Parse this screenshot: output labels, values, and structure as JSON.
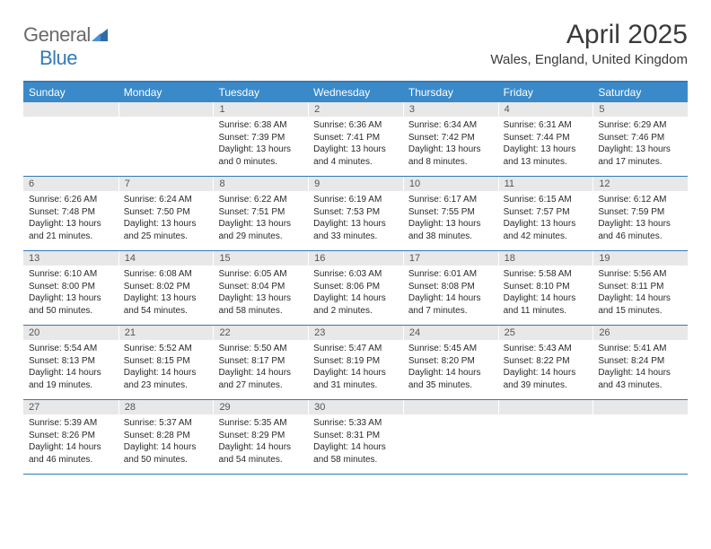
{
  "logo": {
    "text1": "General",
    "text2": "Blue"
  },
  "title": "April 2025",
  "location": "Wales, England, United Kingdom",
  "colors": {
    "header_bg": "#3a8ac9",
    "accent": "#337ab7",
    "daynum_bg": "#e8e8e8",
    "text": "#2a2a2a"
  },
  "day_headers": [
    "Sunday",
    "Monday",
    "Tuesday",
    "Wednesday",
    "Thursday",
    "Friday",
    "Saturday"
  ],
  "weeks": [
    [
      {
        "n": "",
        "empty": true
      },
      {
        "n": "",
        "empty": true
      },
      {
        "n": "1",
        "sunrise": "6:38 AM",
        "sunset": "7:39 PM",
        "daylight": "13 hours and 0 minutes."
      },
      {
        "n": "2",
        "sunrise": "6:36 AM",
        "sunset": "7:41 PM",
        "daylight": "13 hours and 4 minutes."
      },
      {
        "n": "3",
        "sunrise": "6:34 AM",
        "sunset": "7:42 PM",
        "daylight": "13 hours and 8 minutes."
      },
      {
        "n": "4",
        "sunrise": "6:31 AM",
        "sunset": "7:44 PM",
        "daylight": "13 hours and 13 minutes."
      },
      {
        "n": "5",
        "sunrise": "6:29 AM",
        "sunset": "7:46 PM",
        "daylight": "13 hours and 17 minutes."
      }
    ],
    [
      {
        "n": "6",
        "sunrise": "6:26 AM",
        "sunset": "7:48 PM",
        "daylight": "13 hours and 21 minutes."
      },
      {
        "n": "7",
        "sunrise": "6:24 AM",
        "sunset": "7:50 PM",
        "daylight": "13 hours and 25 minutes."
      },
      {
        "n": "8",
        "sunrise": "6:22 AM",
        "sunset": "7:51 PM",
        "daylight": "13 hours and 29 minutes."
      },
      {
        "n": "9",
        "sunrise": "6:19 AM",
        "sunset": "7:53 PM",
        "daylight": "13 hours and 33 minutes."
      },
      {
        "n": "10",
        "sunrise": "6:17 AM",
        "sunset": "7:55 PM",
        "daylight": "13 hours and 38 minutes."
      },
      {
        "n": "11",
        "sunrise": "6:15 AM",
        "sunset": "7:57 PM",
        "daylight": "13 hours and 42 minutes."
      },
      {
        "n": "12",
        "sunrise": "6:12 AM",
        "sunset": "7:59 PM",
        "daylight": "13 hours and 46 minutes."
      }
    ],
    [
      {
        "n": "13",
        "sunrise": "6:10 AM",
        "sunset": "8:00 PM",
        "daylight": "13 hours and 50 minutes."
      },
      {
        "n": "14",
        "sunrise": "6:08 AM",
        "sunset": "8:02 PM",
        "daylight": "13 hours and 54 minutes."
      },
      {
        "n": "15",
        "sunrise": "6:05 AM",
        "sunset": "8:04 PM",
        "daylight": "13 hours and 58 minutes."
      },
      {
        "n": "16",
        "sunrise": "6:03 AM",
        "sunset": "8:06 PM",
        "daylight": "14 hours and 2 minutes."
      },
      {
        "n": "17",
        "sunrise": "6:01 AM",
        "sunset": "8:08 PM",
        "daylight": "14 hours and 7 minutes."
      },
      {
        "n": "18",
        "sunrise": "5:58 AM",
        "sunset": "8:10 PM",
        "daylight": "14 hours and 11 minutes."
      },
      {
        "n": "19",
        "sunrise": "5:56 AM",
        "sunset": "8:11 PM",
        "daylight": "14 hours and 15 minutes."
      }
    ],
    [
      {
        "n": "20",
        "sunrise": "5:54 AM",
        "sunset": "8:13 PM",
        "daylight": "14 hours and 19 minutes."
      },
      {
        "n": "21",
        "sunrise": "5:52 AM",
        "sunset": "8:15 PM",
        "daylight": "14 hours and 23 minutes."
      },
      {
        "n": "22",
        "sunrise": "5:50 AM",
        "sunset": "8:17 PM",
        "daylight": "14 hours and 27 minutes."
      },
      {
        "n": "23",
        "sunrise": "5:47 AM",
        "sunset": "8:19 PM",
        "daylight": "14 hours and 31 minutes."
      },
      {
        "n": "24",
        "sunrise": "5:45 AM",
        "sunset": "8:20 PM",
        "daylight": "14 hours and 35 minutes."
      },
      {
        "n": "25",
        "sunrise": "5:43 AM",
        "sunset": "8:22 PM",
        "daylight": "14 hours and 39 minutes."
      },
      {
        "n": "26",
        "sunrise": "5:41 AM",
        "sunset": "8:24 PM",
        "daylight": "14 hours and 43 minutes."
      }
    ],
    [
      {
        "n": "27",
        "sunrise": "5:39 AM",
        "sunset": "8:26 PM",
        "daylight": "14 hours and 46 minutes."
      },
      {
        "n": "28",
        "sunrise": "5:37 AM",
        "sunset": "8:28 PM",
        "daylight": "14 hours and 50 minutes."
      },
      {
        "n": "29",
        "sunrise": "5:35 AM",
        "sunset": "8:29 PM",
        "daylight": "14 hours and 54 minutes."
      },
      {
        "n": "30",
        "sunrise": "5:33 AM",
        "sunset": "8:31 PM",
        "daylight": "14 hours and 58 minutes."
      },
      {
        "n": "",
        "empty": true
      },
      {
        "n": "",
        "empty": true
      },
      {
        "n": "",
        "empty": true
      }
    ]
  ],
  "labels": {
    "sunrise": "Sunrise:",
    "sunset": "Sunset:",
    "daylight": "Daylight:"
  }
}
